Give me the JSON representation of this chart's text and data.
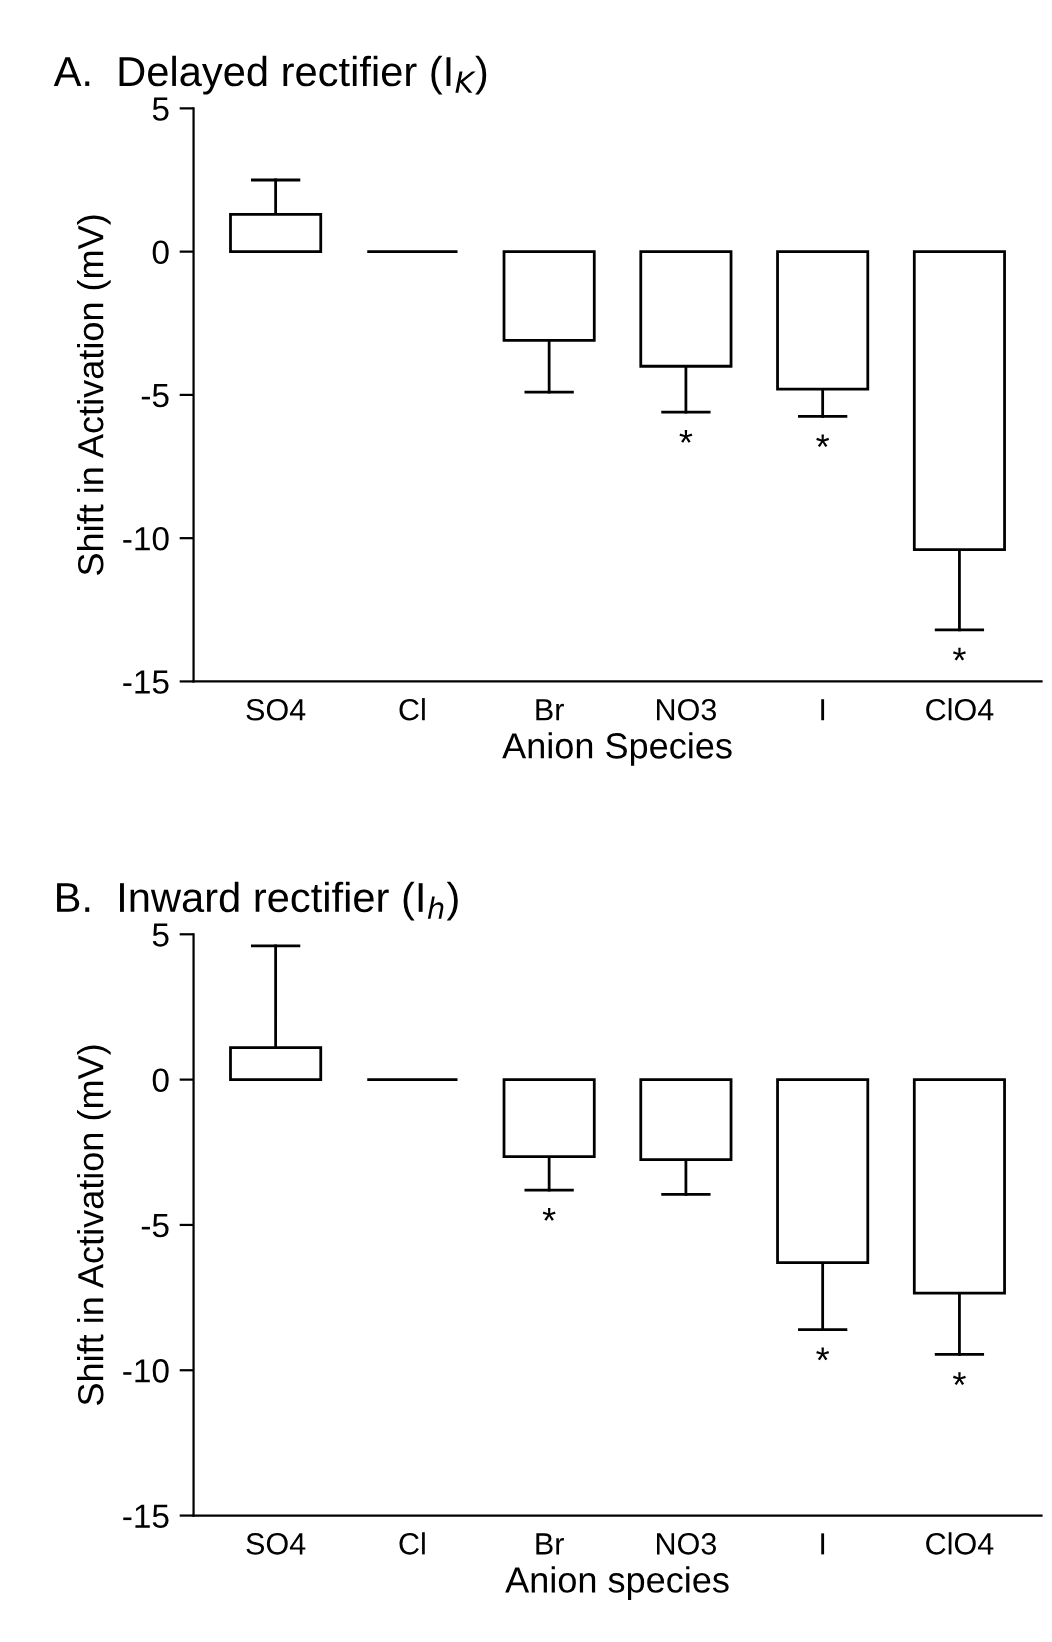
{
  "chart_data": [
    {
      "type": "bar",
      "title": "A.  Delayed rectifier (I$_{K}$)",
      "xlabel": "Anion Species",
      "ylabel": "Shift in Activation (mV)",
      "categories": [
        "SO4",
        "Cl",
        "Br",
        "NO3",
        "I",
        "ClO4"
      ],
      "series": [
        {
          "colors": [
            "#ffffff",
            "#000000",
            "#ffffff",
            "#ffffff",
            "#ffffff",
            "#ffffff"
          ],
          "values": [
            1.3,
            0,
            -3.1,
            -4.0,
            -4.8,
            -10.4
          ],
          "errors": [
            [
              1.3,
              2.5
            ],
            null,
            [
              -4.9,
              -3.1
            ],
            [
              -5.6,
              -4.0
            ],
            [
              -5.75,
              -4.8
            ],
            [
              -13.2,
              -10.4
            ]
          ],
          "value_labels": [
            null,
            null,
            null,
            "*",
            "*",
            "*"
          ]
        }
      ],
      "ylim": [
        -15,
        5
      ],
      "yticks": [
        -15,
        -10,
        -5,
        0,
        5
      ],
      "grid": false
    },
    {
      "type": "bar",
      "title": "B.  Inward rectifier (I$_{h}$)",
      "xlabel": "Anion species",
      "ylabel": "Shift in Activation (mV)",
      "categories": [
        "SO4",
        "Cl",
        "Br",
        "NO3",
        "I",
        "ClO4"
      ],
      "series": [
        {
          "colors": [
            "#ffffff",
            "#000000",
            "#ffffff",
            "#ffffff",
            "#ffffff",
            "#ffffff"
          ],
          "values": [
            1.1,
            0,
            -2.65,
            -2.75,
            -6.3,
            -7.35
          ],
          "errors": [
            [
              1.1,
              4.6
            ],
            null,
            [
              -3.8,
              -2.65
            ],
            [
              -3.95,
              -2.75
            ],
            [
              -8.6,
              -6.3
            ],
            [
              -9.45,
              -7.35
            ]
          ],
          "value_labels": [
            null,
            null,
            "*",
            null,
            "*",
            "*"
          ]
        }
      ],
      "ylim": [
        -15,
        5
      ],
      "yticks": [
        -15,
        -10,
        -5,
        0,
        5
      ],
      "grid": false
    }
  ]
}
